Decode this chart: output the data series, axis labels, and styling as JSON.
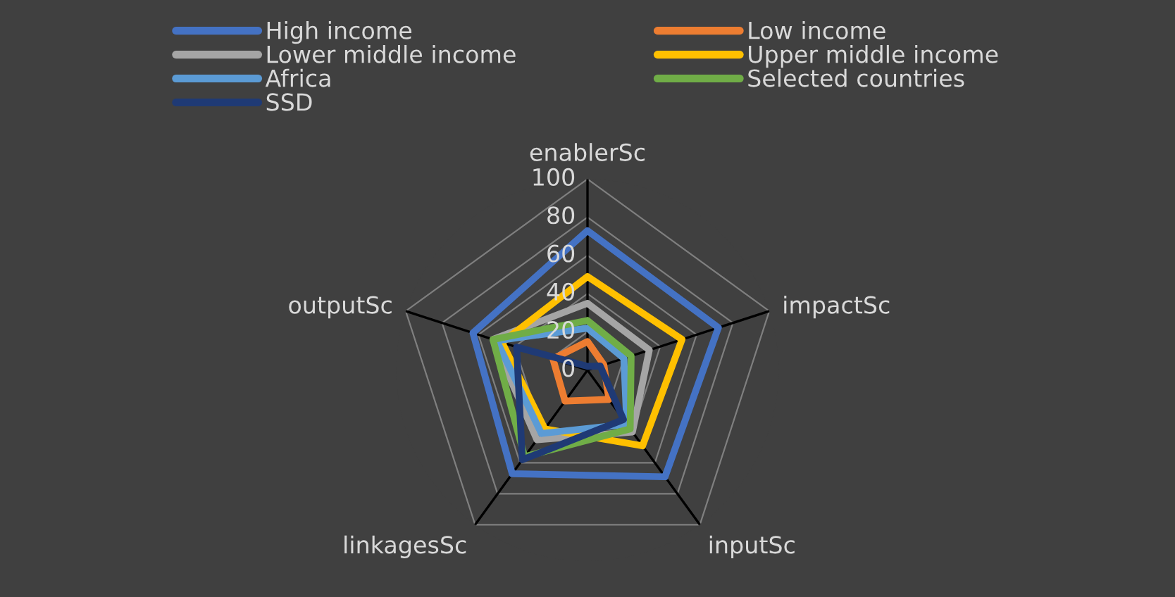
{
  "chart_data": {
    "type": "radar",
    "categories": [
      "enablerSc",
      "impactSc",
      "inputSc",
      "linkagesSc",
      "outputSc"
    ],
    "series": [
      {
        "name": "High income",
        "color": "#4472c4",
        "values": [
          73,
          72,
          69,
          67,
          63
        ]
      },
      {
        "name": "Low income",
        "color": "#ed7d31",
        "values": [
          15,
          9,
          19,
          20,
          19
        ]
      },
      {
        "name": "Lower middle income",
        "color": "#a5a5a5",
        "values": [
          35,
          34,
          40,
          45,
          52
        ]
      },
      {
        "name": "Upper middle income",
        "color": "#ffc000",
        "values": [
          49,
          52,
          49,
          38,
          47
        ]
      },
      {
        "name": "Africa",
        "color": "#5b9bd5",
        "values": [
          22,
          20,
          35,
          41,
          50
        ]
      },
      {
        "name": "Selected countries",
        "color": "#70ad47",
        "values": [
          26,
          24,
          38,
          56,
          52
        ]
      },
      {
        "name": "SSD",
        "color": "#1f3a75",
        "values": [
          2,
          7,
          32,
          58,
          39
        ]
      }
    ],
    "ylim": [
      0,
      100
    ],
    "yticks": [
      0,
      20,
      40,
      60,
      80,
      100
    ],
    "grid": true,
    "legend": "top"
  }
}
